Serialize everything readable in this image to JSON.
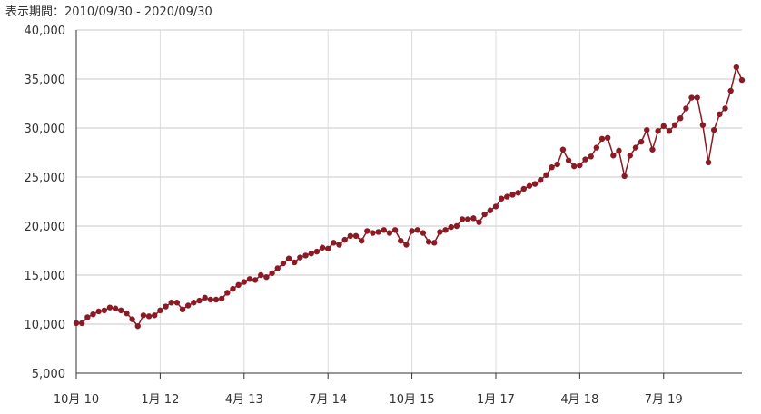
{
  "period": {
    "label": "表示期間：",
    "range": "2010/09/30 - 2020/09/30"
  },
  "chart_data": {
    "type": "line",
    "title": "",
    "xlabel": "",
    "ylabel": "",
    "ylim": [
      5000,
      40000
    ],
    "yticks": [
      5000,
      10000,
      15000,
      20000,
      25000,
      30000,
      35000,
      40000
    ],
    "ytick_labels": [
      "5,000",
      "10,000",
      "15,000",
      "20,000",
      "25,000",
      "30,000",
      "35,000",
      "40,000"
    ],
    "xtick_labels": [
      "10月 10",
      "1月 12",
      "4月 13",
      "7月 14",
      "10月 15",
      "1月 17",
      "4月 18",
      "7月 19"
    ],
    "xtick_month_index": [
      0,
      15,
      30,
      45,
      60,
      75,
      90,
      105
    ],
    "xlim_month_index": [
      0,
      119
    ],
    "grid": true,
    "legend": "none",
    "line_color": "#8b1a24",
    "series": [
      {
        "values": [
          10100,
          10100,
          10700,
          11000,
          11300,
          11400,
          11700,
          11600,
          11400,
          11100,
          10500,
          9800,
          10900,
          10800,
          10900,
          11400,
          11800,
          12200,
          12200,
          11500,
          11900,
          12200,
          12400,
          12700,
          12500,
          12500,
          12600,
          13200,
          13600,
          14000,
          14300,
          14600,
          14500,
          15000,
          14800,
          15200,
          15700,
          16200,
          16700,
          16300,
          16800,
          17000,
          17200,
          17400,
          17800,
          17700,
          18300,
          18100,
          18600,
          19000,
          19000,
          18500,
          19500,
          19300,
          19400,
          19600,
          19300,
          19600,
          18500,
          18100,
          19500,
          19600,
          19300,
          18400,
          18300,
          19400,
          19600,
          19900,
          20000,
          20700,
          20700,
          20800,
          20400,
          21200,
          21600,
          22000,
          22800,
          23000,
          23200,
          23400,
          23800,
          24100,
          24300,
          24700,
          25200,
          26000,
          26300,
          27800,
          26700,
          26100,
          26200,
          26800,
          27100,
          28000,
          28900,
          29000,
          27200,
          27700,
          25100,
          27200,
          28000,
          28600,
          29800,
          27800,
          29700,
          30200,
          29700,
          30300,
          31000,
          32000,
          33100,
          33100,
          30300,
          26500,
          29800,
          31400,
          32000,
          33800,
          36200,
          34900
        ]
      }
    ]
  }
}
